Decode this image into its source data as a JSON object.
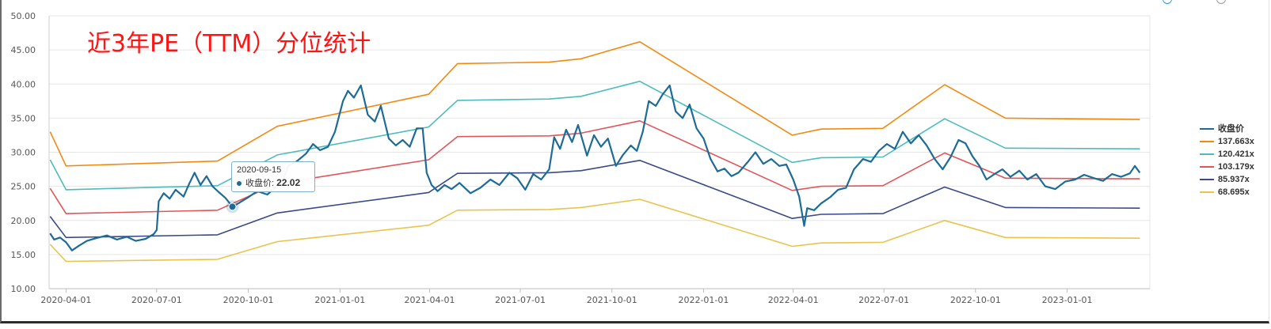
{
  "chart_data": {
    "type": "line",
    "title": "近3年PE（TTM）分位统计",
    "xlabel": "",
    "ylabel": "",
    "ylim": [
      10,
      50
    ],
    "xlim": [
      "2020-03-15",
      "2023-03-25"
    ],
    "yticks": [
      "10.00",
      "15.00",
      "20.00",
      "25.00",
      "30.00",
      "35.00",
      "40.00",
      "45.00",
      "50.00"
    ],
    "xticks": [
      "2020-04-01",
      "2020-07-01",
      "2020-10-01",
      "2021-01-01",
      "2021-04-01",
      "2021-07-01",
      "2021-10-01",
      "2022-01-01",
      "2022-04-01",
      "2022-07-01",
      "2022-10-01",
      "2023-01-01"
    ],
    "grid": true,
    "legend": "right",
    "series": [
      {
        "name": "收盘价",
        "color": "#1d6b97",
        "points": [
          [
            "2020-03-16",
            18.1
          ],
          [
            "2020-03-20",
            17.2
          ],
          [
            "2020-03-26",
            17.5
          ],
          [
            "2020-04-01",
            16.8
          ],
          [
            "2020-04-07",
            15.6
          ],
          [
            "2020-04-14",
            16.3
          ],
          [
            "2020-04-22",
            17.0
          ],
          [
            "2020-05-01",
            17.4
          ],
          [
            "2020-05-12",
            17.8
          ],
          [
            "2020-05-22",
            17.2
          ],
          [
            "2020-06-01",
            17.6
          ],
          [
            "2020-06-10",
            17.0
          ],
          [
            "2020-06-20",
            17.3
          ],
          [
            "2020-06-28",
            18.0
          ],
          [
            "2020-07-01",
            18.6
          ],
          [
            "2020-07-03",
            22.8
          ],
          [
            "2020-07-08",
            24.0
          ],
          [
            "2020-07-14",
            23.2
          ],
          [
            "2020-07-20",
            24.5
          ],
          [
            "2020-07-28",
            23.5
          ],
          [
            "2020-08-03",
            25.5
          ],
          [
            "2020-08-08",
            27.0
          ],
          [
            "2020-08-14",
            25.2
          ],
          [
            "2020-08-20",
            26.5
          ],
          [
            "2020-08-26",
            25.0
          ],
          [
            "2020-09-01",
            24.2
          ],
          [
            "2020-09-08",
            23.3
          ],
          [
            "2020-09-15",
            22.02
          ],
          [
            "2020-09-22",
            22.6
          ],
          [
            "2020-10-01",
            23.4
          ],
          [
            "2020-10-10",
            24.3
          ],
          [
            "2020-10-20",
            23.8
          ],
          [
            "2020-10-28",
            24.8
          ],
          [
            "2020-11-04",
            25.5
          ],
          [
            "2020-11-10",
            28.0
          ],
          [
            "2020-11-18",
            28.6
          ],
          [
            "2020-11-28",
            29.8
          ],
          [
            "2020-12-05",
            31.2
          ],
          [
            "2020-12-12",
            30.3
          ],
          [
            "2020-12-20",
            30.8
          ],
          [
            "2020-12-27",
            33.0
          ],
          [
            "2021-01-04",
            37.5
          ],
          [
            "2021-01-09",
            39.0
          ],
          [
            "2021-01-15",
            38.0
          ],
          [
            "2021-01-22",
            39.8
          ],
          [
            "2021-01-29",
            35.5
          ],
          [
            "2021-02-05",
            34.5
          ],
          [
            "2021-02-11",
            36.8
          ],
          [
            "2021-02-19",
            32.0
          ],
          [
            "2021-02-26",
            31.0
          ],
          [
            "2021-03-05",
            31.8
          ],
          [
            "2021-03-12",
            30.8
          ],
          [
            "2021-03-19",
            33.5
          ],
          [
            "2021-03-25",
            33.5
          ],
          [
            "2021-03-29",
            27.0
          ],
          [
            "2021-04-03",
            25.2
          ],
          [
            "2021-04-09",
            24.3
          ],
          [
            "2021-04-16",
            25.2
          ],
          [
            "2021-04-23",
            24.6
          ],
          [
            "2021-05-01",
            25.5
          ],
          [
            "2021-05-12",
            24.0
          ],
          [
            "2021-05-22",
            24.8
          ],
          [
            "2021-06-01",
            26.0
          ],
          [
            "2021-06-10",
            25.2
          ],
          [
            "2021-06-20",
            27.0
          ],
          [
            "2021-06-28",
            26.2
          ],
          [
            "2021-07-06",
            24.5
          ],
          [
            "2021-07-14",
            26.8
          ],
          [
            "2021-07-22",
            26.0
          ],
          [
            "2021-07-30",
            27.5
          ],
          [
            "2021-08-04",
            32.2
          ],
          [
            "2021-08-10",
            30.5
          ],
          [
            "2021-08-16",
            33.3
          ],
          [
            "2021-08-22",
            31.5
          ],
          [
            "2021-08-28",
            34.0
          ],
          [
            "2021-09-06",
            29.5
          ],
          [
            "2021-09-13",
            32.5
          ],
          [
            "2021-09-20",
            30.8
          ],
          [
            "2021-09-27",
            32.0
          ],
          [
            "2021-10-05",
            28.0
          ],
          [
            "2021-10-12",
            29.6
          ],
          [
            "2021-10-20",
            31.0
          ],
          [
            "2021-10-26",
            30.2
          ],
          [
            "2021-11-01",
            33.0
          ],
          [
            "2021-11-07",
            37.5
          ],
          [
            "2021-11-14",
            36.8
          ],
          [
            "2021-11-21",
            38.5
          ],
          [
            "2021-11-28",
            39.8
          ],
          [
            "2021-12-04",
            36.0
          ],
          [
            "2021-12-11",
            35.0
          ],
          [
            "2021-12-18",
            37.0
          ],
          [
            "2021-12-25",
            33.5
          ],
          [
            "2022-01-01",
            32.0
          ],
          [
            "2022-01-08",
            29.0
          ],
          [
            "2022-01-15",
            27.2
          ],
          [
            "2022-01-22",
            27.6
          ],
          [
            "2022-01-29",
            26.5
          ],
          [
            "2022-02-05",
            27.0
          ],
          [
            "2022-02-14",
            28.5
          ],
          [
            "2022-02-22",
            30.0
          ],
          [
            "2022-03-02",
            28.3
          ],
          [
            "2022-03-10",
            29.0
          ],
          [
            "2022-03-18",
            28.0
          ],
          [
            "2022-03-25",
            28.2
          ],
          [
            "2022-04-01",
            26.0
          ],
          [
            "2022-04-07",
            23.5
          ],
          [
            "2022-04-12",
            19.2
          ],
          [
            "2022-04-15",
            21.8
          ],
          [
            "2022-04-22",
            21.5
          ],
          [
            "2022-04-29",
            22.5
          ],
          [
            "2022-05-08",
            23.4
          ],
          [
            "2022-05-16",
            24.5
          ],
          [
            "2022-05-24",
            24.8
          ],
          [
            "2022-06-01",
            27.5
          ],
          [
            "2022-06-10",
            29.0
          ],
          [
            "2022-06-18",
            28.6
          ],
          [
            "2022-06-26",
            30.2
          ],
          [
            "2022-07-04",
            31.2
          ],
          [
            "2022-07-12",
            30.5
          ],
          [
            "2022-07-20",
            33.0
          ],
          [
            "2022-07-28",
            31.3
          ],
          [
            "2022-08-05",
            32.5
          ],
          [
            "2022-08-13",
            31.0
          ],
          [
            "2022-08-21",
            29.0
          ],
          [
            "2022-08-29",
            27.5
          ],
          [
            "2022-09-06",
            29.3
          ],
          [
            "2022-09-14",
            31.8
          ],
          [
            "2022-09-21",
            31.3
          ],
          [
            "2022-09-28",
            29.4
          ],
          [
            "2022-10-05",
            28.0
          ],
          [
            "2022-10-12",
            26.0
          ],
          [
            "2022-10-20",
            26.8
          ],
          [
            "2022-10-28",
            27.5
          ],
          [
            "2022-11-05",
            26.4
          ],
          [
            "2022-11-14",
            27.3
          ],
          [
            "2022-11-22",
            26.0
          ],
          [
            "2022-12-01",
            26.8
          ],
          [
            "2022-12-10",
            25.0
          ],
          [
            "2022-12-20",
            24.6
          ],
          [
            "2022-12-30",
            25.7
          ],
          [
            "2023-01-09",
            26.0
          ],
          [
            "2023-01-18",
            26.7
          ],
          [
            "2023-01-28",
            26.2
          ],
          [
            "2023-02-06",
            25.8
          ],
          [
            "2023-02-15",
            26.8
          ],
          [
            "2023-02-24",
            26.4
          ],
          [
            "2023-03-05",
            26.9
          ],
          [
            "2023-03-10",
            28.0
          ],
          [
            "2023-03-15",
            27.0
          ]
        ]
      },
      {
        "name": "137.663x",
        "color": "#f28a12",
        "points": [
          [
            "2020-03-16",
            33.0
          ],
          [
            "2020-04-01",
            28.0
          ],
          [
            "2020-08-31",
            28.7
          ],
          [
            "2020-10-30",
            33.8
          ],
          [
            "2021-03-31",
            38.5
          ],
          [
            "2021-04-29",
            43.0
          ],
          [
            "2021-07-30",
            43.2
          ],
          [
            "2021-08-31",
            43.7
          ],
          [
            "2021-10-29",
            46.2
          ],
          [
            "2022-03-31",
            32.5
          ],
          [
            "2022-04-29",
            33.4
          ],
          [
            "2022-06-30",
            33.5
          ],
          [
            "2022-08-31",
            39.9
          ],
          [
            "2022-10-31",
            35.0
          ],
          [
            "2023-03-15",
            34.8
          ]
        ]
      },
      {
        "name": "120.421x",
        "color": "#4cbcbc",
        "points": [
          [
            "2020-03-16",
            28.9
          ],
          [
            "2020-04-01",
            24.5
          ],
          [
            "2020-08-31",
            25.1
          ],
          [
            "2020-10-30",
            29.6
          ],
          [
            "2021-03-31",
            33.7
          ],
          [
            "2021-04-29",
            37.6
          ],
          [
            "2021-07-30",
            37.8
          ],
          [
            "2021-08-31",
            38.2
          ],
          [
            "2021-10-29",
            40.4
          ],
          [
            "2022-03-31",
            28.5
          ],
          [
            "2022-04-29",
            29.2
          ],
          [
            "2022-06-30",
            29.3
          ],
          [
            "2022-08-31",
            34.9
          ],
          [
            "2022-10-31",
            30.6
          ],
          [
            "2023-03-15",
            30.5
          ]
        ]
      },
      {
        "name": "103.179x",
        "color": "#e0555a",
        "points": [
          [
            "2020-03-16",
            24.7
          ],
          [
            "2020-04-01",
            21.0
          ],
          [
            "2020-08-31",
            21.5
          ],
          [
            "2020-10-30",
            25.4
          ],
          [
            "2021-03-31",
            28.9
          ],
          [
            "2021-04-29",
            32.3
          ],
          [
            "2021-07-30",
            32.4
          ],
          [
            "2021-08-31",
            32.8
          ],
          [
            "2021-10-29",
            34.6
          ],
          [
            "2022-03-31",
            24.4
          ],
          [
            "2022-04-29",
            25.0
          ],
          [
            "2022-06-30",
            25.1
          ],
          [
            "2022-08-31",
            29.9
          ],
          [
            "2022-10-31",
            26.2
          ],
          [
            "2023-03-15",
            26.1
          ]
        ]
      },
      {
        "name": "85.937x",
        "color": "#3a4a86",
        "points": [
          [
            "2020-03-16",
            20.6
          ],
          [
            "2020-04-01",
            17.5
          ],
          [
            "2020-08-31",
            17.9
          ],
          [
            "2020-10-30",
            21.1
          ],
          [
            "2021-03-31",
            24.1
          ],
          [
            "2021-04-29",
            26.9
          ],
          [
            "2021-07-30",
            27.0
          ],
          [
            "2021-08-31",
            27.3
          ],
          [
            "2021-10-29",
            28.8
          ],
          [
            "2022-03-31",
            20.3
          ],
          [
            "2022-04-29",
            20.9
          ],
          [
            "2022-06-30",
            21.0
          ],
          [
            "2022-08-31",
            24.9
          ],
          [
            "2022-10-31",
            21.9
          ],
          [
            "2023-03-15",
            21.8
          ]
        ]
      },
      {
        "name": "68.695x",
        "color": "#e8c44e",
        "points": [
          [
            "2020-03-16",
            16.5
          ],
          [
            "2020-04-01",
            14.0
          ],
          [
            "2020-08-31",
            14.3
          ],
          [
            "2020-10-30",
            16.9
          ],
          [
            "2021-03-31",
            19.3
          ],
          [
            "2021-04-29",
            21.5
          ],
          [
            "2021-07-30",
            21.6
          ],
          [
            "2021-08-31",
            21.9
          ],
          [
            "2021-10-29",
            23.1
          ],
          [
            "2022-03-31",
            16.2
          ],
          [
            "2022-04-29",
            16.7
          ],
          [
            "2022-06-30",
            16.8
          ],
          [
            "2022-08-31",
            20.0
          ],
          [
            "2022-10-31",
            17.5
          ],
          [
            "2023-03-15",
            17.4
          ]
        ]
      }
    ],
    "tooltip": {
      "date": "2020-09-15",
      "label": "收盘价:",
      "value": "22.02"
    }
  }
}
